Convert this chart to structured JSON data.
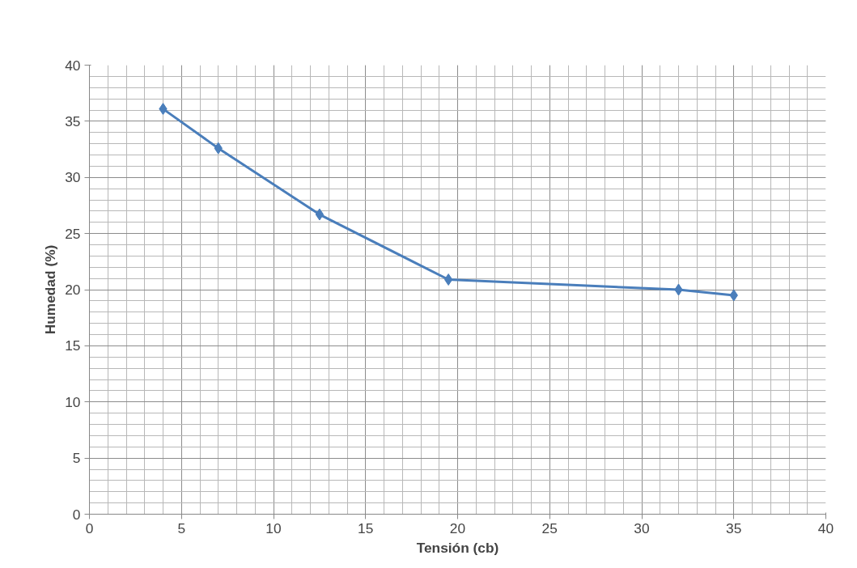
{
  "chart_data": {
    "type": "line",
    "xlabel": "Tensión (cb)",
    "ylabel": "Humedad (%)",
    "x": [
      4,
      7,
      12.5,
      19.5,
      32,
      35
    ],
    "series": [
      {
        "color": "#4a7ebb",
        "values": [
          36.1,
          32.6,
          26.7,
          20.9,
          20.0,
          19.5
        ]
      }
    ],
    "xlim": [
      0,
      40
    ],
    "ylim": [
      0,
      40
    ],
    "xticks": [
      0,
      5,
      10,
      15,
      20,
      25,
      30,
      35,
      40
    ],
    "yticks": [
      0,
      5,
      10,
      15,
      20,
      25,
      30,
      35,
      40
    ],
    "grid": true,
    "marker": "diamond",
    "line_style": "solid"
  }
}
